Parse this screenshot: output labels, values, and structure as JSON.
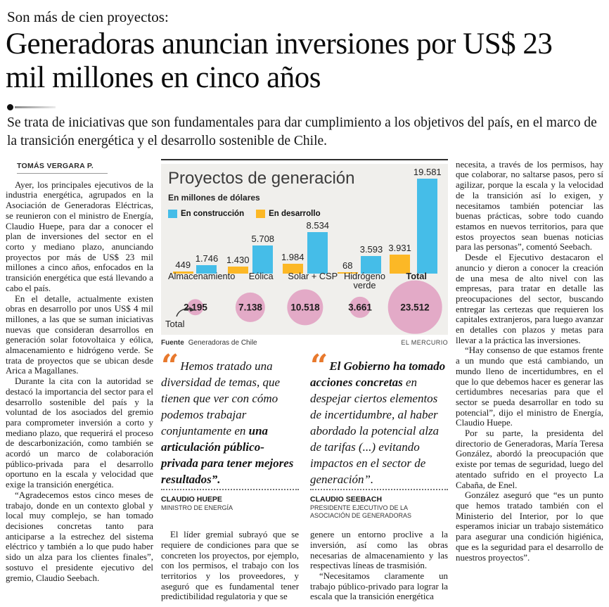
{
  "header": {
    "kicker": "Son más de cien proyectos:",
    "headline": "Generadoras anuncian inversiones por US$ 23 mil millones en cinco años",
    "deck": "Se trata de iniciativas que son fundamentales para dar cumplimiento a los objetivos del país, en el marco de la transición energética y el desarrollo sostenible de Chile."
  },
  "byline": "TOMÁS VERGARA P.",
  "left_column": {
    "paragraphs": [
      "Ayer, los principales ejecutivos de la industria energética, agrupados en la Asociación de Generadoras Eléctricas, se reunieron con el ministro de Energía, Claudio Huepe, para dar a conocer el plan de inversiones del sector en el corto y mediano plazo, anunciando proyectos por más de US$ 23 mil millones a cinco años, enfocados en la transición energética que está llevando a cabo el país.",
      "En el detalle, actualmente existen obras en desarrollo por unos US$ 4 mil millones, a las que se suman iniciativas nuevas que consideran desarrollos en generación solar fotovoltaica y eólica, almacenamiento e hidrógeno verde. Se trata de proyectos que se ubican desde Arica a Magallanes.",
      "Durante la cita con la autoridad se destacó la importancia del sector para el desarrollo sostenible del país y la voluntad de los asociados del gremio para comprometer inversión a corto y mediano plazo, que requerirá el proceso de descarbonización, como también se acordó un marco de colaboración público-privada para el desarrollo oportuno en la escala y velocidad que exige la transición energética.",
      "“Agradecemos estos cinco meses de trabajo, donde en un contexto global y local muy complejo, se han tomado decisiones concretas tanto para anticiparse a la estrechez del sistema eléctrico y también a lo que pudo haber sido un alza para los clientes finales”, sostuvo el presidente ejecutivo del gremio, Claudio Seebach."
    ]
  },
  "right_column": {
    "paragraphs": [
      "necesita, a través de los permisos, hay que colaborar, no saltarse pasos, pero sí agilizar, porque la escala y la velocidad de la transición así lo exigen, y necesitamos también potenciar las buenas prácticas, sobre todo cuando estamos en nuevos territorios, para que estos proyectos sean buenas noticias para las personas”, comentó Seebach.",
      "Desde el Ejecutivo destacaron el anuncio y dieron a conocer la creación de una mesa de alto nivel con las empresas, para tratar en detalle las preocupaciones del sector, buscando entregar las certezas que requieren los capitales extranjeros, para luego avanzar en detalles con plazos y metas para llevar a la práctica las inversiones.",
      "“Hay consenso de que estamos frente a un mundo que está cambiando, un mundo lleno de incertidumbres, en el que lo que debemos hacer es generar las certidumbres necesarias para que el sector se pueda desarrollar en todo su potencial”, dijo el ministro de Energía, Claudio Huepe.",
      "Por su parte, la presidenta del directorio de Generadoras, María Teresa González, abordó la preocupación que existe por temas de seguridad, luego del atentado sufrido en el proyecto La Cabaña, de Enel.",
      "González aseguró que “es un punto que hemos tratado también con el Ministerio del Interior, por lo que esperamos iniciar un trabajo sistemático para asegurar una condición higiénica, que es la seguridad para el desarrollo de nuestros proyectos”."
    ]
  },
  "mid_left": {
    "paragraphs": [
      "El líder gremial subrayó que se requiere de condiciones para que se concreten los proyectos, por ejemplo, con los permisos, el trabajo con los territorios y los proveedores, y aseguró que es fundamental tener predictibilidad regulatoria y que se"
    ]
  },
  "mid_right": {
    "paragraphs": [
      "genere un entorno proclive a la inversión, así como las obras necesarias de almacenamiento y las respectivas líneas de trasmisión.",
      "“Necesitamos claramente un trabajo público-privado para lograr la escala que la transición energética"
    ]
  },
  "quotes": [
    {
      "part1": "Hemos tratado una diversidad de temas, que tienen que ver con cómo podemos trabajar conjuntamente en ",
      "part2": "una articulación público-privada para tener mejores resultados”.",
      "author": "CLAUDIO HUEPE",
      "role": "MINISTRO DE ENERGÍA"
    },
    {
      "part1": "El Gobierno ha tomado acciones concretas",
      "part2": " en despejar ciertos elementos de incertidumbre, al haber abordado la potencial alza de tarifas (...) evitando impactos en el sector de generación”.",
      "author": "CLAUDIO SEEBACH",
      "role": "PRESIDENTE EJECUTIVO DE LA ASOCIACIÓN DE GENERADORAS"
    }
  ],
  "chart_data": {
    "type": "bar",
    "title": "Proyectos de generación",
    "subtitle": "En millones de dólares",
    "categories": [
      "Almacenamiento",
      "Eólica",
      "Solar + CSP",
      "Hidrógeno verde",
      "Total"
    ],
    "categories_bold": [
      false,
      false,
      false,
      false,
      true
    ],
    "series": [
      {
        "name": "En construcción",
        "color": "#45bde8",
        "values": [
          1746,
          5708,
          8534,
          3593,
          19581
        ],
        "labels": [
          "1.746",
          "5.708",
          "8.534",
          "3.593",
          "19.581"
        ]
      },
      {
        "name": "En desarrollo",
        "color": "#fcb826",
        "values": [
          449,
          1430,
          1984,
          68,
          3931
        ],
        "labels": [
          "449",
          "1.430",
          "1.984",
          "68",
          "3.931"
        ]
      }
    ],
    "totals": {
      "pointer_label": "Total",
      "color": "#e3aac7",
      "values": [
        2195,
        7138,
        10518,
        3661,
        23512
      ],
      "labels": [
        "2.195",
        "7.138",
        "10.518",
        "3.661",
        "23.512"
      ]
    },
    "ylim": [
      0,
      19581
    ],
    "grid": false,
    "legend_position": "top-left",
    "source_label": "Fuente",
    "source": "Generadoras de Chile",
    "credit": "EL MERCURIO"
  }
}
